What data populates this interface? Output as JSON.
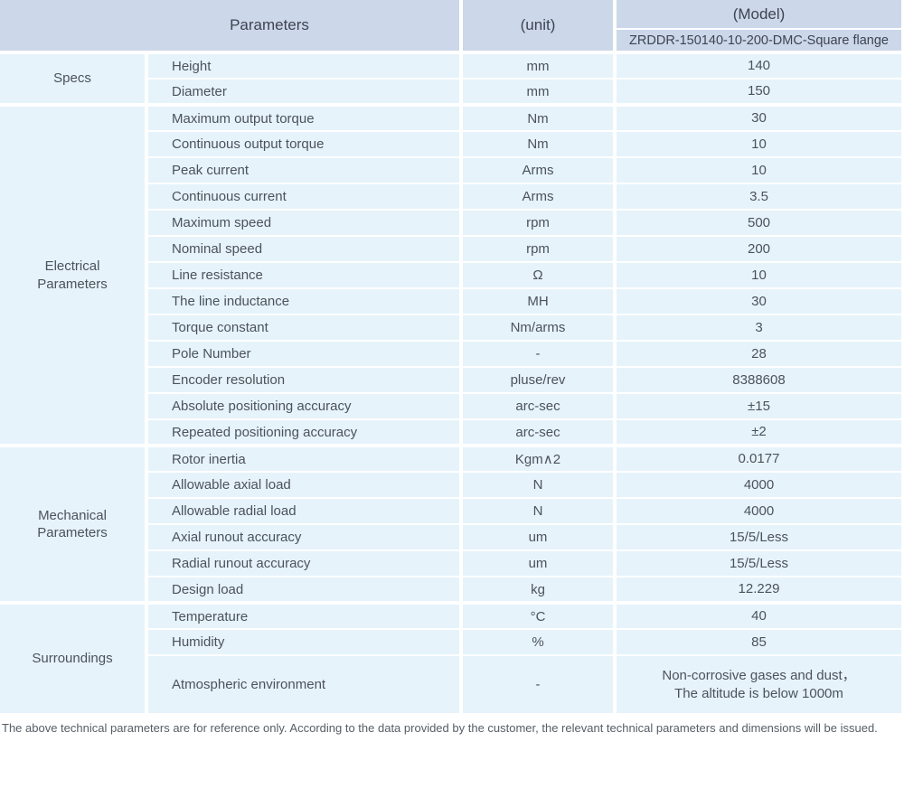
{
  "header": {
    "parameters_label": "Parameters",
    "unit_label": "(unit)",
    "model_label": "(Model)",
    "model_name": "ZRDDR-150140-10-200-DMC-Square flange"
  },
  "sections": [
    {
      "group": "Specs",
      "rows": [
        {
          "name": "Height",
          "unit": "mm",
          "value": "140"
        },
        {
          "name": "Diameter",
          "unit": "mm",
          "value": "150"
        }
      ]
    },
    {
      "group": "Electrical Parameters",
      "rows": [
        {
          "name": "Maximum output torque",
          "unit": "Nm",
          "value": "30"
        },
        {
          "name": "Continuous output torque",
          "unit": "Nm",
          "value": "10"
        },
        {
          "name": "Peak current",
          "unit": "Arms",
          "value": "10"
        },
        {
          "name": "Continuous current",
          "unit": "Arms",
          "value": "3.5"
        },
        {
          "name": "Maximum speed",
          "unit": "rpm",
          "value": "500"
        },
        {
          "name": "Nominal speed",
          "unit": "rpm",
          "value": "200"
        },
        {
          "name": "Line resistance",
          "unit": "Ω",
          "value": "10"
        },
        {
          "name": "The line inductance",
          "unit": "MH",
          "value": "30"
        },
        {
          "name": "Torque constant",
          "unit": "Nm/arms",
          "value": "3"
        },
        {
          "name": "Pole Number",
          "unit": "-",
          "value": "28"
        },
        {
          "name": "Encoder resolution",
          "unit": "pluse/rev",
          "value": "8388608"
        },
        {
          "name": "Absolute positioning accuracy",
          "unit": "arc-sec",
          "value": "±15"
        },
        {
          "name": "Repeated positioning accuracy",
          "unit": "arc-sec",
          "value": "±2"
        }
      ]
    },
    {
      "group": "Mechanical Parameters",
      "rows": [
        {
          "name": "Rotor inertia",
          "unit": "Kgm∧2",
          "value": "0.0177"
        },
        {
          "name": "Allowable axial load",
          "unit": "N",
          "value": "4000"
        },
        {
          "name": "Allowable radial load",
          "unit": "N",
          "value": "4000"
        },
        {
          "name": "Axial runout accuracy",
          "unit": "um",
          "value": "15/5/Less"
        },
        {
          "name": "Radial runout accuracy",
          "unit": "um",
          "value": "15/5/Less"
        },
        {
          "name": "Design load",
          "unit": "kg",
          "value": "12.229"
        }
      ]
    },
    {
      "group": "Surroundings",
      "rows": [
        {
          "name": "Temperature",
          "unit": "°C",
          "value": "40"
        },
        {
          "name": "Humidity",
          "unit": "%",
          "value": "85"
        },
        {
          "name": "Atmospheric environment",
          "unit": "-",
          "value": "Non-corrosive gases and dust，\nThe altitude is below 1000m",
          "tall": true
        }
      ]
    }
  ],
  "footer_note": "The above technical parameters are for reference only. According to the data provided by the customer, the relevant technical parameters and dimensions will be issued.",
  "colors": {
    "header_bg": "#ccd7ea",
    "body_bg": "#e6f3fb",
    "text": "#4c525b"
  }
}
